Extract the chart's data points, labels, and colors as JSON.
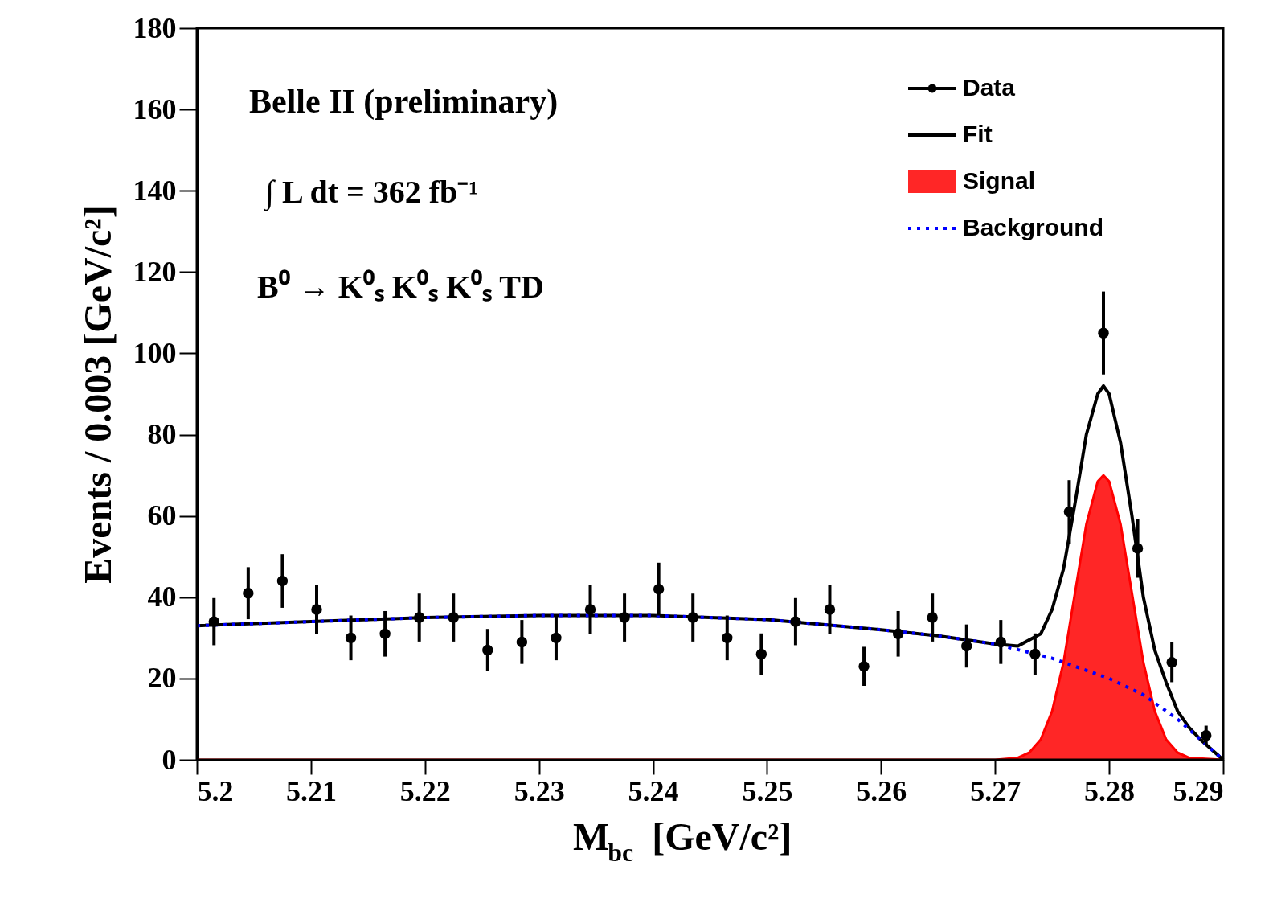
{
  "chart_data": {
    "type": "scatter",
    "xlabel": "M$_{bc}$ [GeV/c²]",
    "ylabel": "Events / 0.003 [GeV/c²]",
    "xlim": [
      5.2,
      5.29
    ],
    "xticks": [
      5.2,
      5.21,
      5.22,
      5.23,
      5.24,
      5.25,
      5.26,
      5.27,
      5.28,
      5.29
    ],
    "ylim": [
      0,
      180
    ],
    "yticks": [
      0,
      20,
      40,
      60,
      80,
      100,
      120,
      140,
      160,
      180
    ],
    "legend": "top right",
    "grid": false,
    "annotations": [
      "Belle II (preliminary)",
      "∫ L dt = 362 fb⁻¹",
      "B⁰ → K⁰ₛ K⁰ₛ K⁰ₛ TD"
    ],
    "series": [
      {
        "name": "Data",
        "type": "scatter",
        "marker": "circle",
        "color": "#000000",
        "x": [
          5.2015,
          5.2045,
          5.2075,
          5.2105,
          5.2135,
          5.2165,
          5.2195,
          5.2225,
          5.2255,
          5.2285,
          5.2315,
          5.2345,
          5.2375,
          5.2405,
          5.2435,
          5.2465,
          5.2495,
          5.2525,
          5.2555,
          5.2585,
          5.2615,
          5.2645,
          5.2675,
          5.2705,
          5.2735,
          5.2765,
          5.2795,
          5.2825,
          5.2855,
          5.2885
        ],
        "values": [
          34,
          41,
          44,
          37,
          30,
          31,
          35,
          35,
          27,
          29,
          30,
          37,
          35,
          42,
          35,
          30,
          26,
          34,
          37,
          23,
          31,
          35,
          28,
          29,
          26,
          61,
          105,
          52,
          24,
          6
        ],
        "errors": [
          5.8,
          6.4,
          6.6,
          6.1,
          5.5,
          5.6,
          5.9,
          5.9,
          5.2,
          5.4,
          5.5,
          6.1,
          5.9,
          6.5,
          5.9,
          5.5,
          5.1,
          5.8,
          6.1,
          4.8,
          5.6,
          5.9,
          5.3,
          5.4,
          5.1,
          7.8,
          10.2,
          7.2,
          4.9,
          2.4
        ]
      },
      {
        "name": "Fit",
        "type": "line",
        "line_style": "solid",
        "color": "#000000",
        "x": [
          5.2,
          5.21,
          5.22,
          5.23,
          5.24,
          5.25,
          5.26,
          5.265,
          5.27,
          5.272,
          5.274,
          5.275,
          5.276,
          5.277,
          5.278,
          5.279,
          5.2795,
          5.28,
          5.281,
          5.282,
          5.283,
          5.284,
          5.285,
          5.286,
          5.287,
          5.288,
          5.29
        ],
        "values": [
          33,
          34,
          35,
          35.5,
          35.5,
          34.5,
          32,
          30.5,
          28.5,
          28,
          31,
          37,
          47,
          63,
          80,
          90,
          92,
          90,
          78,
          60,
          40,
          27,
          19,
          12,
          8,
          5,
          0
        ]
      },
      {
        "name": "Signal",
        "type": "area",
        "color": "#ff0000",
        "x": [
          5.2,
          5.27,
          5.272,
          5.273,
          5.274,
          5.275,
          5.276,
          5.277,
          5.278,
          5.279,
          5.2795,
          5.28,
          5.281,
          5.282,
          5.283,
          5.284,
          5.285,
          5.286,
          5.287,
          5.29
        ],
        "values": [
          0,
          0,
          0.5,
          1.8,
          5,
          12,
          24,
          41,
          58,
          68.5,
          70,
          68.5,
          58,
          41,
          24,
          12,
          5,
          1.8,
          0.5,
          0
        ]
      },
      {
        "name": "Background",
        "type": "line",
        "line_style": "dotted",
        "color": "#0000ff",
        "x": [
          5.2,
          5.21,
          5.22,
          5.23,
          5.24,
          5.25,
          5.26,
          5.265,
          5.27,
          5.275,
          5.28,
          5.283,
          5.286,
          5.288,
          5.29
        ],
        "values": [
          33,
          34,
          35,
          35.5,
          35.5,
          34.5,
          32,
          30.5,
          28.5,
          25,
          20,
          16,
          10,
          5,
          0
        ]
      }
    ]
  }
}
